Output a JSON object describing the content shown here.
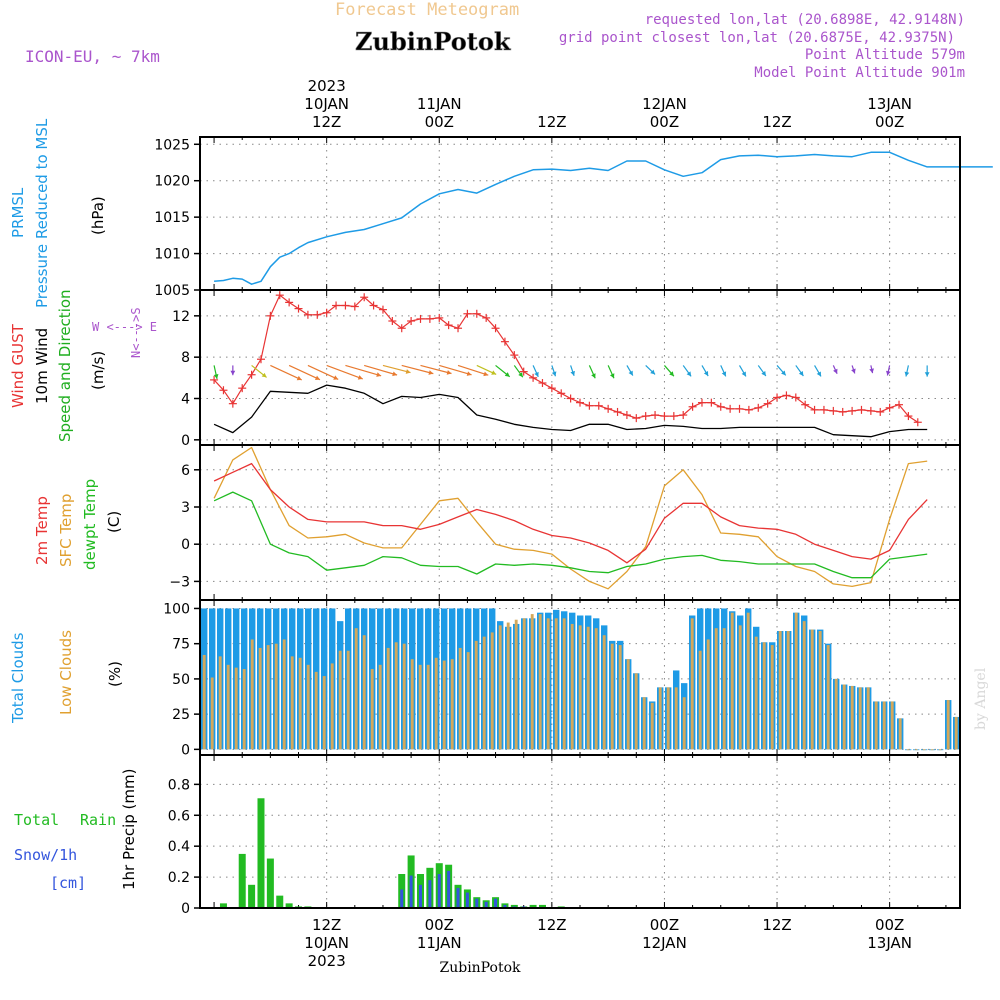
{
  "header": {
    "subtitle": "Forecast Meteogram",
    "title": "ZubinPotok",
    "model": "ICON-EU, ~ 7km",
    "requested": "requested lon,lat (20.6898E, 42.9148N)",
    "closest": "grid point closest lon,lat (20.6875E, 42.9375N)",
    "point_alt": "Point Altitude 579m",
    "model_alt": "Model Point Altitude 901m",
    "footer": "ZubinPotok",
    "credit": "by Angel"
  },
  "colors": {
    "pressure": "#1e9be6",
    "gust": "#e83434",
    "wind": "#000000",
    "dir_label": "#1fae1f",
    "temp2m": "#e83434",
    "sfc": "#e0a030",
    "dewpt": "#22bb22",
    "total_cloud": "#1e9be6",
    "low_cloud": "#d4a85a",
    "rain": "#22bb22",
    "snow": "#3355dd",
    "header_sub": "#f0c890",
    "meta": "#aa55cc"
  },
  "time_axis": {
    "top_labels": [
      {
        "t": 12,
        "lines": [
          "2023",
          "10JAN",
          "12Z"
        ]
      },
      {
        "t": 24,
        "lines": [
          "11JAN",
          "00Z"
        ]
      },
      {
        "t": 36,
        "lines": [
          "12Z"
        ]
      },
      {
        "t": 48,
        "lines": [
          "12JAN",
          "00Z"
        ]
      },
      {
        "t": 60,
        "lines": [
          "12Z"
        ]
      },
      {
        "t": 72,
        "lines": [
          "13JAN",
          "00Z"
        ]
      }
    ],
    "bottom_labels": [
      {
        "t": 12,
        "lines": [
          "12Z",
          "10JAN",
          "2023"
        ]
      },
      {
        "t": 24,
        "lines": [
          "00Z",
          "11JAN"
        ]
      },
      {
        "t": 36,
        "lines": [
          "12Z"
        ]
      },
      {
        "t": 48,
        "lines": [
          "00Z",
          "12JAN"
        ]
      },
      {
        "t": 60,
        "lines": [
          "12Z"
        ]
      },
      {
        "t": 72,
        "lines": [
          "00Z",
          "13JAN"
        ]
      }
    ]
  },
  "chart_data": [
    {
      "type": "line",
      "title": "PRMSL Pressure Reduced to MSL",
      "ylabel": "(hPa)",
      "ylim": [
        1005,
        1026
      ],
      "yticks": [
        1005,
        1010,
        1015,
        1020,
        1025
      ],
      "series": [
        {
          "name": "PRMSL",
          "t": [
            0,
            1,
            2,
            3,
            4,
            5,
            6,
            7,
            8,
            9,
            10,
            12,
            14,
            16,
            18,
            20,
            22,
            24,
            26,
            28,
            30,
            32,
            34,
            36,
            38,
            40,
            42,
            44,
            46,
            48,
            50,
            52,
            54,
            56,
            58,
            60,
            62,
            64,
            66,
            68,
            70,
            72,
            74,
            76,
            78,
            80,
            82,
            83
          ],
          "values": [
            1006.2,
            1006.3,
            1006.6,
            1006.5,
            1005.8,
            1006.2,
            1008.2,
            1009.5,
            1010.0,
            1010.8,
            1011.5,
            1012.3,
            1012.9,
            1013.3,
            1014.1,
            1014.9,
            1016.8,
            1018.2,
            1018.8,
            1018.3,
            1019.5,
            1020.6,
            1021.5,
            1021.6,
            1021.4,
            1021.7,
            1021.4,
            1022.7,
            1022.7,
            1021.5,
            1020.6,
            1021.1,
            1022.9,
            1023.4,
            1023.5,
            1023.3,
            1023.4,
            1023.6,
            1023.4,
            1023.3,
            1023.9,
            1023.9,
            1022.8,
            1021.9,
            1021.9,
            1021.9,
            1021.9,
            1021.9
          ]
        }
      ]
    },
    {
      "type": "line",
      "title": "Wind GUST / 10m Wind Speed and Direction",
      "ylabel": "(m/s)",
      "ylim": [
        -0.5,
        14.5
      ],
      "yticks": [
        0,
        4,
        8,
        12
      ],
      "compass_labels": [
        "W <---> E",
        "N<--->S"
      ],
      "series": [
        {
          "name": "Wind GUST",
          "t": [
            0,
            1,
            2,
            3,
            4,
            5,
            6,
            7,
            8,
            9,
            10,
            11,
            12,
            13,
            14,
            15,
            16,
            17,
            18,
            19,
            20,
            21,
            22,
            23,
            24,
            25,
            26,
            27,
            28,
            29,
            30,
            31,
            32,
            33,
            34,
            35,
            36,
            37,
            38,
            39,
            40,
            41,
            42,
            43,
            44,
            45,
            46,
            47,
            48,
            49,
            50,
            51,
            52,
            53,
            54,
            55,
            56,
            57,
            58,
            59,
            60,
            61,
            62,
            63,
            64,
            65,
            66,
            67,
            68,
            69,
            70,
            71,
            72,
            73,
            74,
            75
          ],
          "values": [
            5.8,
            4.8,
            3.5,
            5.0,
            6.3,
            7.8,
            12.0,
            14.0,
            13.3,
            12.7,
            12.1,
            12.1,
            12.3,
            13.0,
            13.0,
            12.9,
            13.8,
            13.0,
            12.6,
            11.5,
            10.8,
            11.5,
            11.7,
            11.7,
            11.8,
            11.1,
            10.8,
            12.2,
            12.2,
            11.8,
            10.8,
            9.5,
            8.2,
            6.6,
            6.0,
            5.5,
            5.0,
            4.5,
            4.0,
            3.6,
            3.3,
            3.3,
            3.0,
            2.7,
            2.4,
            2.1,
            2.3,
            2.4,
            2.3,
            2.3,
            2.4,
            3.2,
            3.6,
            3.6,
            3.2,
            3.0,
            3.0,
            2.9,
            3.1,
            3.5,
            4.1,
            4.3,
            4.1,
            3.4,
            2.9,
            2.9,
            2.8,
            2.7,
            2.8,
            2.9,
            2.8,
            2.7,
            3.1,
            3.4,
            2.3,
            1.7
          ]
        },
        {
          "name": "10m Wind",
          "t": [
            0,
            2,
            4,
            6,
            8,
            10,
            12,
            14,
            16,
            18,
            20,
            22,
            24,
            26,
            28,
            30,
            32,
            34,
            36,
            38,
            40,
            42,
            44,
            46,
            48,
            50,
            52,
            54,
            56,
            58,
            60,
            62,
            64,
            66,
            68,
            70,
            72,
            74,
            76
          ],
          "values": [
            1.5,
            0.7,
            2.2,
            4.7,
            4.6,
            4.5,
            5.3,
            5.0,
            4.5,
            3.5,
            4.2,
            4.1,
            4.4,
            4.1,
            2.4,
            2.0,
            1.5,
            1.2,
            1.0,
            0.9,
            1.5,
            1.5,
            1.0,
            1.1,
            1.4,
            1.3,
            1.1,
            1.1,
            1.2,
            1.2,
            1.2,
            1.2,
            1.2,
            0.5,
            0.4,
            0.3,
            0.8,
            1.0,
            1.0
          ]
        }
      ]
    },
    {
      "type": "line",
      "title": "2m Temp / SFC Temp / dewpt Temp",
      "ylabel": "(C)",
      "ylim": [
        -4.5,
        8
      ],
      "yticks": [
        -3,
        0,
        3,
        6
      ],
      "series": [
        {
          "name": "2m Temp",
          "t": [
            0,
            2,
            4,
            6,
            8,
            10,
            12,
            14,
            16,
            18,
            20,
            22,
            24,
            26,
            28,
            30,
            32,
            34,
            36,
            38,
            40,
            42,
            44,
            46,
            48,
            50,
            52,
            54,
            56,
            58,
            60,
            62,
            64,
            66,
            68,
            70,
            72,
            74,
            76
          ],
          "values": [
            5.1,
            5.8,
            6.5,
            4.4,
            3.0,
            2.0,
            1.8,
            1.8,
            1.8,
            1.5,
            1.5,
            1.2,
            1.6,
            2.2,
            2.8,
            2.4,
            1.9,
            1.2,
            0.7,
            0.5,
            0.1,
            -0.5,
            -1.5,
            -0.4,
            2.1,
            3.3,
            3.3,
            2.2,
            1.5,
            1.3,
            1.2,
            0.8,
            0.0,
            -0.5,
            -1.0,
            -1.2,
            -0.5,
            2.0,
            3.6
          ]
        },
        {
          "name": "SFC Temp",
          "t": [
            0,
            2,
            4,
            6,
            8,
            10,
            12,
            14,
            16,
            18,
            20,
            22,
            24,
            26,
            28,
            30,
            32,
            34,
            36,
            38,
            40,
            42,
            44,
            46,
            48,
            50,
            52,
            54,
            56,
            58,
            60,
            62,
            64,
            66,
            68,
            70,
            72,
            74,
            76
          ],
          "values": [
            3.7,
            6.8,
            7.8,
            4.4,
            1.5,
            0.5,
            0.6,
            0.8,
            0.1,
            -0.3,
            -0.3,
            1.6,
            3.5,
            3.7,
            1.8,
            0.0,
            -0.4,
            -0.5,
            -0.8,
            -2.0,
            -3.0,
            -3.6,
            -2.2,
            -0.2,
            4.7,
            6.0,
            4.0,
            0.9,
            0.8,
            0.6,
            -1.0,
            -1.8,
            -2.2,
            -3.2,
            -3.4,
            -3.1,
            2.0,
            6.5,
            6.7
          ]
        },
        {
          "name": "dewpt Temp",
          "t": [
            0,
            2,
            4,
            6,
            8,
            10,
            12,
            14,
            16,
            18,
            20,
            22,
            24,
            26,
            28,
            30,
            32,
            34,
            36,
            38,
            40,
            42,
            44,
            46,
            48,
            50,
            52,
            54,
            56,
            58,
            60,
            62,
            64,
            66,
            68,
            70,
            72,
            74,
            76
          ],
          "values": [
            3.5,
            4.2,
            3.5,
            0.0,
            -0.7,
            -1.0,
            -2.1,
            -1.9,
            -1.7,
            -1.0,
            -1.1,
            -1.7,
            -1.8,
            -1.8,
            -2.4,
            -1.6,
            -1.7,
            -1.6,
            -1.7,
            -1.9,
            -2.2,
            -2.3,
            -1.8,
            -1.6,
            -1.2,
            -1.0,
            -0.9,
            -1.3,
            -1.4,
            -1.6,
            -1.6,
            -1.6,
            -1.6,
            -2.2,
            -2.7,
            -2.7,
            -1.2,
            -1.0,
            -0.8
          ]
        }
      ]
    },
    {
      "type": "bar",
      "title": "Total Clouds / Low Clouds",
      "ylabel": "(%)",
      "ylim": [
        -4,
        106
      ],
      "yticks": [
        0,
        25,
        50,
        75,
        100
      ],
      "series": [
        {
          "name": "Total Clouds",
          "values": [
            100,
            100,
            100,
            100,
            100,
            100,
            100,
            100,
            100,
            100,
            100,
            100,
            100,
            100,
            100,
            100,
            100,
            91,
            100,
            100,
            100,
            100,
            100,
            100,
            100,
            100,
            100,
            100,
            100,
            100,
            100,
            100,
            100,
            100,
            100,
            100,
            100,
            91,
            87,
            89,
            93,
            93,
            97,
            97,
            99,
            98,
            97,
            95,
            95,
            93,
            88,
            77,
            77,
            64,
            54,
            37,
            34,
            44,
            44,
            56,
            47,
            95,
            100,
            100,
            100,
            100,
            98,
            95,
            100,
            87,
            76,
            76,
            84,
            84,
            97,
            95,
            85,
            85,
            75,
            50,
            46,
            45,
            44,
            44,
            34,
            34,
            34,
            22,
            0,
            0,
            0,
            0,
            0,
            35,
            23
          ]
        },
        {
          "name": "Low Clouds",
          "values": [
            67,
            51,
            66,
            60,
            58,
            57,
            78,
            72,
            74,
            75,
            78,
            66,
            65,
            60,
            55,
            52,
            61,
            70,
            70,
            86,
            81,
            57,
            60,
            72,
            76,
            75,
            64,
            60,
            60,
            65,
            63,
            64,
            72,
            69,
            77,
            80,
            83,
            88,
            90,
            92,
            93,
            96,
            96,
            93,
            93,
            93,
            89,
            88,
            87,
            86,
            81,
            75,
            74,
            64,
            54,
            37,
            33,
            44,
            44,
            44,
            37,
            93,
            70,
            78,
            86,
            86,
            97,
            88,
            97,
            80,
            76,
            74,
            84,
            84,
            97,
            91,
            85,
            84,
            74,
            50,
            46,
            45,
            44,
            44,
            34,
            34,
            34,
            22,
            0,
            0,
            0,
            0,
            0,
            35,
            23
          ]
        }
      ]
    },
    {
      "type": "bar",
      "title": "Total Rain / Snow/1h [cm]",
      "ylabel": "1hr Precip (mm)",
      "ylim": [
        0,
        0.99
      ],
      "yticks": [
        0,
        0.2,
        0.4,
        0.6,
        0.8
      ],
      "series": [
        {
          "name": "Total Rain",
          "t": [
            1,
            3,
            4,
            5,
            6,
            7,
            8,
            9,
            10,
            20,
            21,
            22,
            23,
            24,
            25,
            26,
            27,
            28,
            29,
            30,
            31,
            32,
            33,
            34,
            35,
            37
          ],
          "values": [
            0.03,
            0.35,
            0.15,
            0.71,
            0.32,
            0.08,
            0.03,
            0.01,
            0.01,
            0.22,
            0.34,
            0.22,
            0.26,
            0.29,
            0.28,
            0.15,
            0.12,
            0.07,
            0.05,
            0.07,
            0.03,
            0.02,
            0.01,
            0.02,
            0.02,
            0.01
          ]
        },
        {
          "name": "Snow/1h",
          "t": [
            20,
            21,
            22,
            23,
            24,
            25,
            26,
            27,
            28,
            29,
            30,
            31,
            32,
            33
          ],
          "values": [
            0.12,
            0.21,
            0.15,
            0.18,
            0.22,
            0.24,
            0.13,
            0.1,
            0.06,
            0.04,
            0.06,
            0.02,
            0.01,
            0.01
          ]
        }
      ]
    }
  ],
  "wind_arrows": {
    "t": [
      0,
      2,
      4,
      6,
      8,
      10,
      12,
      14,
      16,
      18,
      20,
      22,
      24,
      26,
      28,
      30,
      32,
      34,
      36,
      38,
      40,
      42,
      44,
      46,
      48,
      50,
      52,
      54,
      56,
      58,
      60,
      62,
      64,
      66,
      68,
      70,
      72,
      74,
      76
    ],
    "dir": [
      10,
      0,
      45,
      60,
      60,
      60,
      65,
      70,
      70,
      72,
      72,
      72,
      70,
      68,
      60,
      45,
      30,
      20,
      15,
      15,
      20,
      20,
      25,
      40,
      35,
      30,
      25,
      20,
      25,
      30,
      35,
      30,
      25,
      20,
      15,
      10,
      350,
      350,
      0
    ]
  },
  "labels": {
    "pressure": [
      "PRMSL",
      "Pressure Reduced to MSL",
      "(hPa)"
    ],
    "wind": [
      "Wind GUST",
      "10m Wind",
      "Speed and Direction",
      "(m/s)"
    ],
    "temp": [
      "2m Temp",
      "SFC Temp",
      "dewpt Temp",
      "(C)"
    ],
    "cloud": [
      "Total Clouds",
      "Low Clouds",
      "(%)"
    ],
    "precip": [
      "Total",
      "Rain",
      "Snow/1h",
      "[cm]",
      "1hr Precip (mm)"
    ]
  }
}
